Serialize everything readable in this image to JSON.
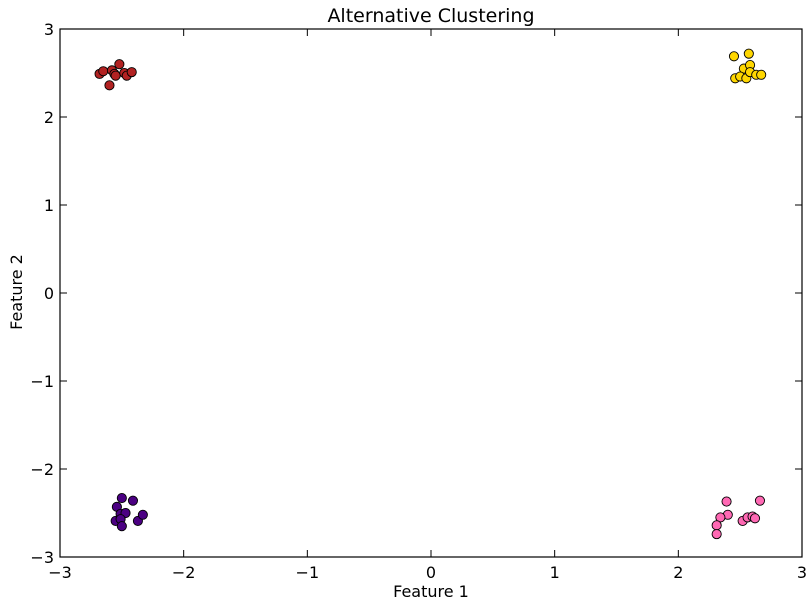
{
  "chart_data": {
    "type": "scatter",
    "title": "Alternative Clustering",
    "xlabel": "Feature 1",
    "ylabel": "Feature 2",
    "xlim": [
      -3,
      3
    ],
    "ylim": [
      -3,
      3
    ],
    "xticks": [
      -3,
      -2,
      -1,
      0,
      1,
      2,
      3
    ],
    "yticks": [
      -3,
      -2,
      -1,
      0,
      1,
      2,
      3
    ],
    "xtick_labels": [
      "−3",
      "−2",
      "−1",
      "0",
      "1",
      "2",
      "3"
    ],
    "ytick_labels": [
      "−3",
      "−2",
      "−1",
      "0",
      "1",
      "2",
      "3"
    ],
    "grid": false,
    "legend": "none",
    "series": [
      {
        "color": "#b22222",
        "points": [
          [
            -2.68,
            2.49
          ],
          [
            -2.65,
            2.52
          ],
          [
            -2.58,
            2.53
          ],
          [
            -2.56,
            2.49
          ],
          [
            -2.52,
            2.6
          ],
          [
            -2.55,
            2.47
          ],
          [
            -2.48,
            2.5
          ],
          [
            -2.46,
            2.47
          ],
          [
            -2.42,
            2.51
          ],
          [
            -2.6,
            2.36
          ]
        ]
      },
      {
        "color": "#ffd700",
        "points": [
          [
            2.45,
            2.69
          ],
          [
            2.57,
            2.72
          ],
          [
            2.53,
            2.55
          ],
          [
            2.58,
            2.59
          ],
          [
            2.46,
            2.44
          ],
          [
            2.5,
            2.46
          ],
          [
            2.55,
            2.44
          ],
          [
            2.58,
            2.51
          ],
          [
            2.63,
            2.48
          ],
          [
            2.67,
            2.48
          ]
        ]
      },
      {
        "color": "#4b0082",
        "points": [
          [
            -2.5,
            -2.33
          ],
          [
            -2.54,
            -2.43
          ],
          [
            -2.41,
            -2.36
          ],
          [
            -2.51,
            -2.51
          ],
          [
            -2.47,
            -2.5
          ],
          [
            -2.55,
            -2.59
          ],
          [
            -2.51,
            -2.57
          ],
          [
            -2.5,
            -2.65
          ],
          [
            -2.37,
            -2.59
          ],
          [
            -2.33,
            -2.52
          ]
        ]
      },
      {
        "color": "#ff69b4",
        "points": [
          [
            2.39,
            -2.37
          ],
          [
            2.4,
            -2.52
          ],
          [
            2.66,
            -2.36
          ],
          [
            2.34,
            -2.55
          ],
          [
            2.31,
            -2.64
          ],
          [
            2.31,
            -2.74
          ],
          [
            2.52,
            -2.59
          ],
          [
            2.56,
            -2.55
          ],
          [
            2.6,
            -2.54
          ],
          [
            2.62,
            -2.56
          ]
        ]
      }
    ]
  }
}
